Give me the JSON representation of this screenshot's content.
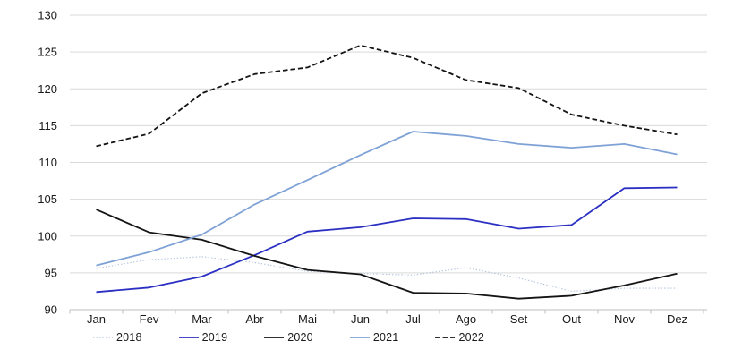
{
  "chart_data": {
    "type": "line",
    "categories": [
      "Jan",
      "Fev",
      "Mar",
      "Abr",
      "Mai",
      "Jun",
      "Jul",
      "Ago",
      "Set",
      "Out",
      "Nov",
      "Dez"
    ],
    "series": [
      {
        "name": "2018",
        "line_style": "dotted",
        "color": "#b3c3dd",
        "width": 1.1,
        "values": [
          95.6,
          96.8,
          97.2,
          96.4,
          95.2,
          94.9,
          94.7,
          95.7,
          94.3,
          92.5,
          92.9,
          92.9
        ]
      },
      {
        "name": "2019",
        "line_style": "solid",
        "color": "#2b30c3",
        "width": 1.8,
        "values": [
          92.4,
          93.0,
          94.5,
          97.4,
          100.6,
          101.2,
          102.4,
          102.3,
          101.0,
          101.5,
          106.5,
          106.6
        ]
      },
      {
        "name": "2020",
        "line_style": "solid",
        "color": "#141414",
        "width": 1.8,
        "values": [
          103.6,
          100.5,
          99.5,
          97.3,
          95.4,
          94.8,
          92.3,
          92.2,
          91.5,
          91.9,
          93.3,
          94.9
        ]
      },
      {
        "name": "2021",
        "line_style": "solid",
        "color": "#7fa2d6",
        "width": 1.8,
        "values": [
          96.0,
          97.8,
          100.2,
          104.3,
          107.6,
          111.0,
          114.2,
          113.6,
          112.5,
          112.0,
          112.5,
          111.1
        ]
      },
      {
        "name": "2022",
        "line_style": "dashed",
        "color": "#141414",
        "width": 1.8,
        "values": [
          112.2,
          113.9,
          119.4,
          122.0,
          122.9,
          125.9,
          124.2,
          121.2,
          120.1,
          116.5,
          115.0,
          113.8
        ]
      }
    ],
    "title": "",
    "xlabel": "",
    "ylabel": "",
    "ylim": [
      90,
      130
    ],
    "yticks": [
      90,
      95,
      100,
      105,
      110,
      115,
      120,
      125,
      130
    ],
    "grid": "horizontal",
    "legend_position": "bottom",
    "colors": {
      "gridline": "#d9d9d9",
      "axis_line": "#bfbfbf",
      "tick_mark": "#bfbfbf",
      "axis_label": "#1a1a1a",
      "background": "#ffffff"
    }
  }
}
